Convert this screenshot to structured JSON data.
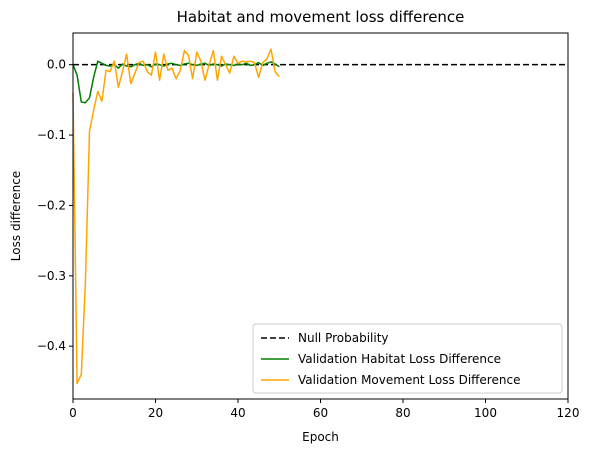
{
  "chart_data": {
    "type": "line",
    "title": "Habitat and movement loss difference",
    "xlabel": "Epoch",
    "ylabel": "Loss difference",
    "xlim": [
      0,
      120
    ],
    "ylim": [
      -0.475,
      0.045
    ],
    "xticks": [
      0,
      20,
      40,
      60,
      80,
      100,
      120
    ],
    "yticks": [
      0.0,
      -0.1,
      -0.2,
      -0.3,
      -0.4
    ],
    "ytick_labels": [
      "0.0",
      "−0.1",
      "−0.2",
      "−0.3",
      "−0.4"
    ],
    "grid": false,
    "legend_position": "lower-right",
    "reference_line": {
      "name": "Null Probability",
      "y": 0.0,
      "color": "#000000",
      "style": "dashed",
      "x_range": [
        0,
        120
      ]
    },
    "series": [
      {
        "name": "Validation Habitat Loss Difference",
        "color": "#008000",
        "x": [
          0,
          1,
          2,
          3,
          4,
          5,
          6,
          7,
          8,
          9,
          10,
          11,
          12,
          13,
          14,
          15,
          16,
          17,
          18,
          19,
          20,
          21,
          22,
          23,
          24,
          25,
          26,
          27,
          28,
          29,
          30,
          31,
          32,
          33,
          34,
          35,
          36,
          37,
          38,
          39,
          40,
          41,
          42,
          43,
          44,
          45,
          46,
          47,
          48,
          49,
          50
        ],
        "y": [
          0.0,
          -0.015,
          -0.053,
          -0.054,
          -0.047,
          -0.018,
          0.005,
          0.002,
          -0.001,
          -0.002,
          0.0,
          -0.005,
          0.001,
          -0.002,
          -0.003,
          0.0,
          0.002,
          -0.001,
          0.0,
          -0.003,
          0.001,
          0.0,
          -0.002,
          0.001,
          0.002,
          0.0,
          -0.001,
          0.001,
          0.002,
          0.0,
          -0.001,
          0.001,
          0.002,
          -0.001,
          0.001,
          0.0,
          -0.002,
          0.001,
          0.0,
          -0.001,
          0.001,
          0.0,
          0.002,
          -0.001,
          0.0,
          0.003,
          -0.001,
          0.002,
          0.004,
          0.001,
          -0.003
        ]
      },
      {
        "name": "Validation Movement Loss Difference",
        "color": "#FFA500",
        "x": [
          0,
          1,
          2,
          3,
          4,
          5,
          6,
          7,
          8,
          9,
          10,
          11,
          12,
          13,
          14,
          15,
          16,
          17,
          18,
          19,
          20,
          21,
          22,
          23,
          24,
          25,
          26,
          27,
          28,
          29,
          30,
          31,
          32,
          33,
          34,
          35,
          36,
          37,
          38,
          39,
          40,
          41,
          42,
          43,
          44,
          45,
          46,
          47,
          48,
          49,
          50
        ],
        "y": [
          -0.04,
          -0.453,
          -0.44,
          -0.31,
          -0.095,
          -0.065,
          -0.038,
          -0.052,
          -0.008,
          -0.01,
          0.005,
          -0.032,
          -0.01,
          0.015,
          -0.027,
          -0.012,
          0.003,
          0.005,
          -0.01,
          -0.015,
          0.018,
          -0.022,
          0.015,
          -0.008,
          -0.005,
          -0.02,
          -0.008,
          0.02,
          0.013,
          -0.02,
          0.018,
          0.005,
          -0.022,
          0.0,
          0.02,
          -0.022,
          0.012,
          0.0,
          -0.012,
          0.012,
          0.002,
          0.005,
          0.004,
          0.005,
          0.003,
          -0.018,
          0.003,
          0.008,
          0.022,
          -0.01,
          -0.017
        ]
      }
    ]
  }
}
